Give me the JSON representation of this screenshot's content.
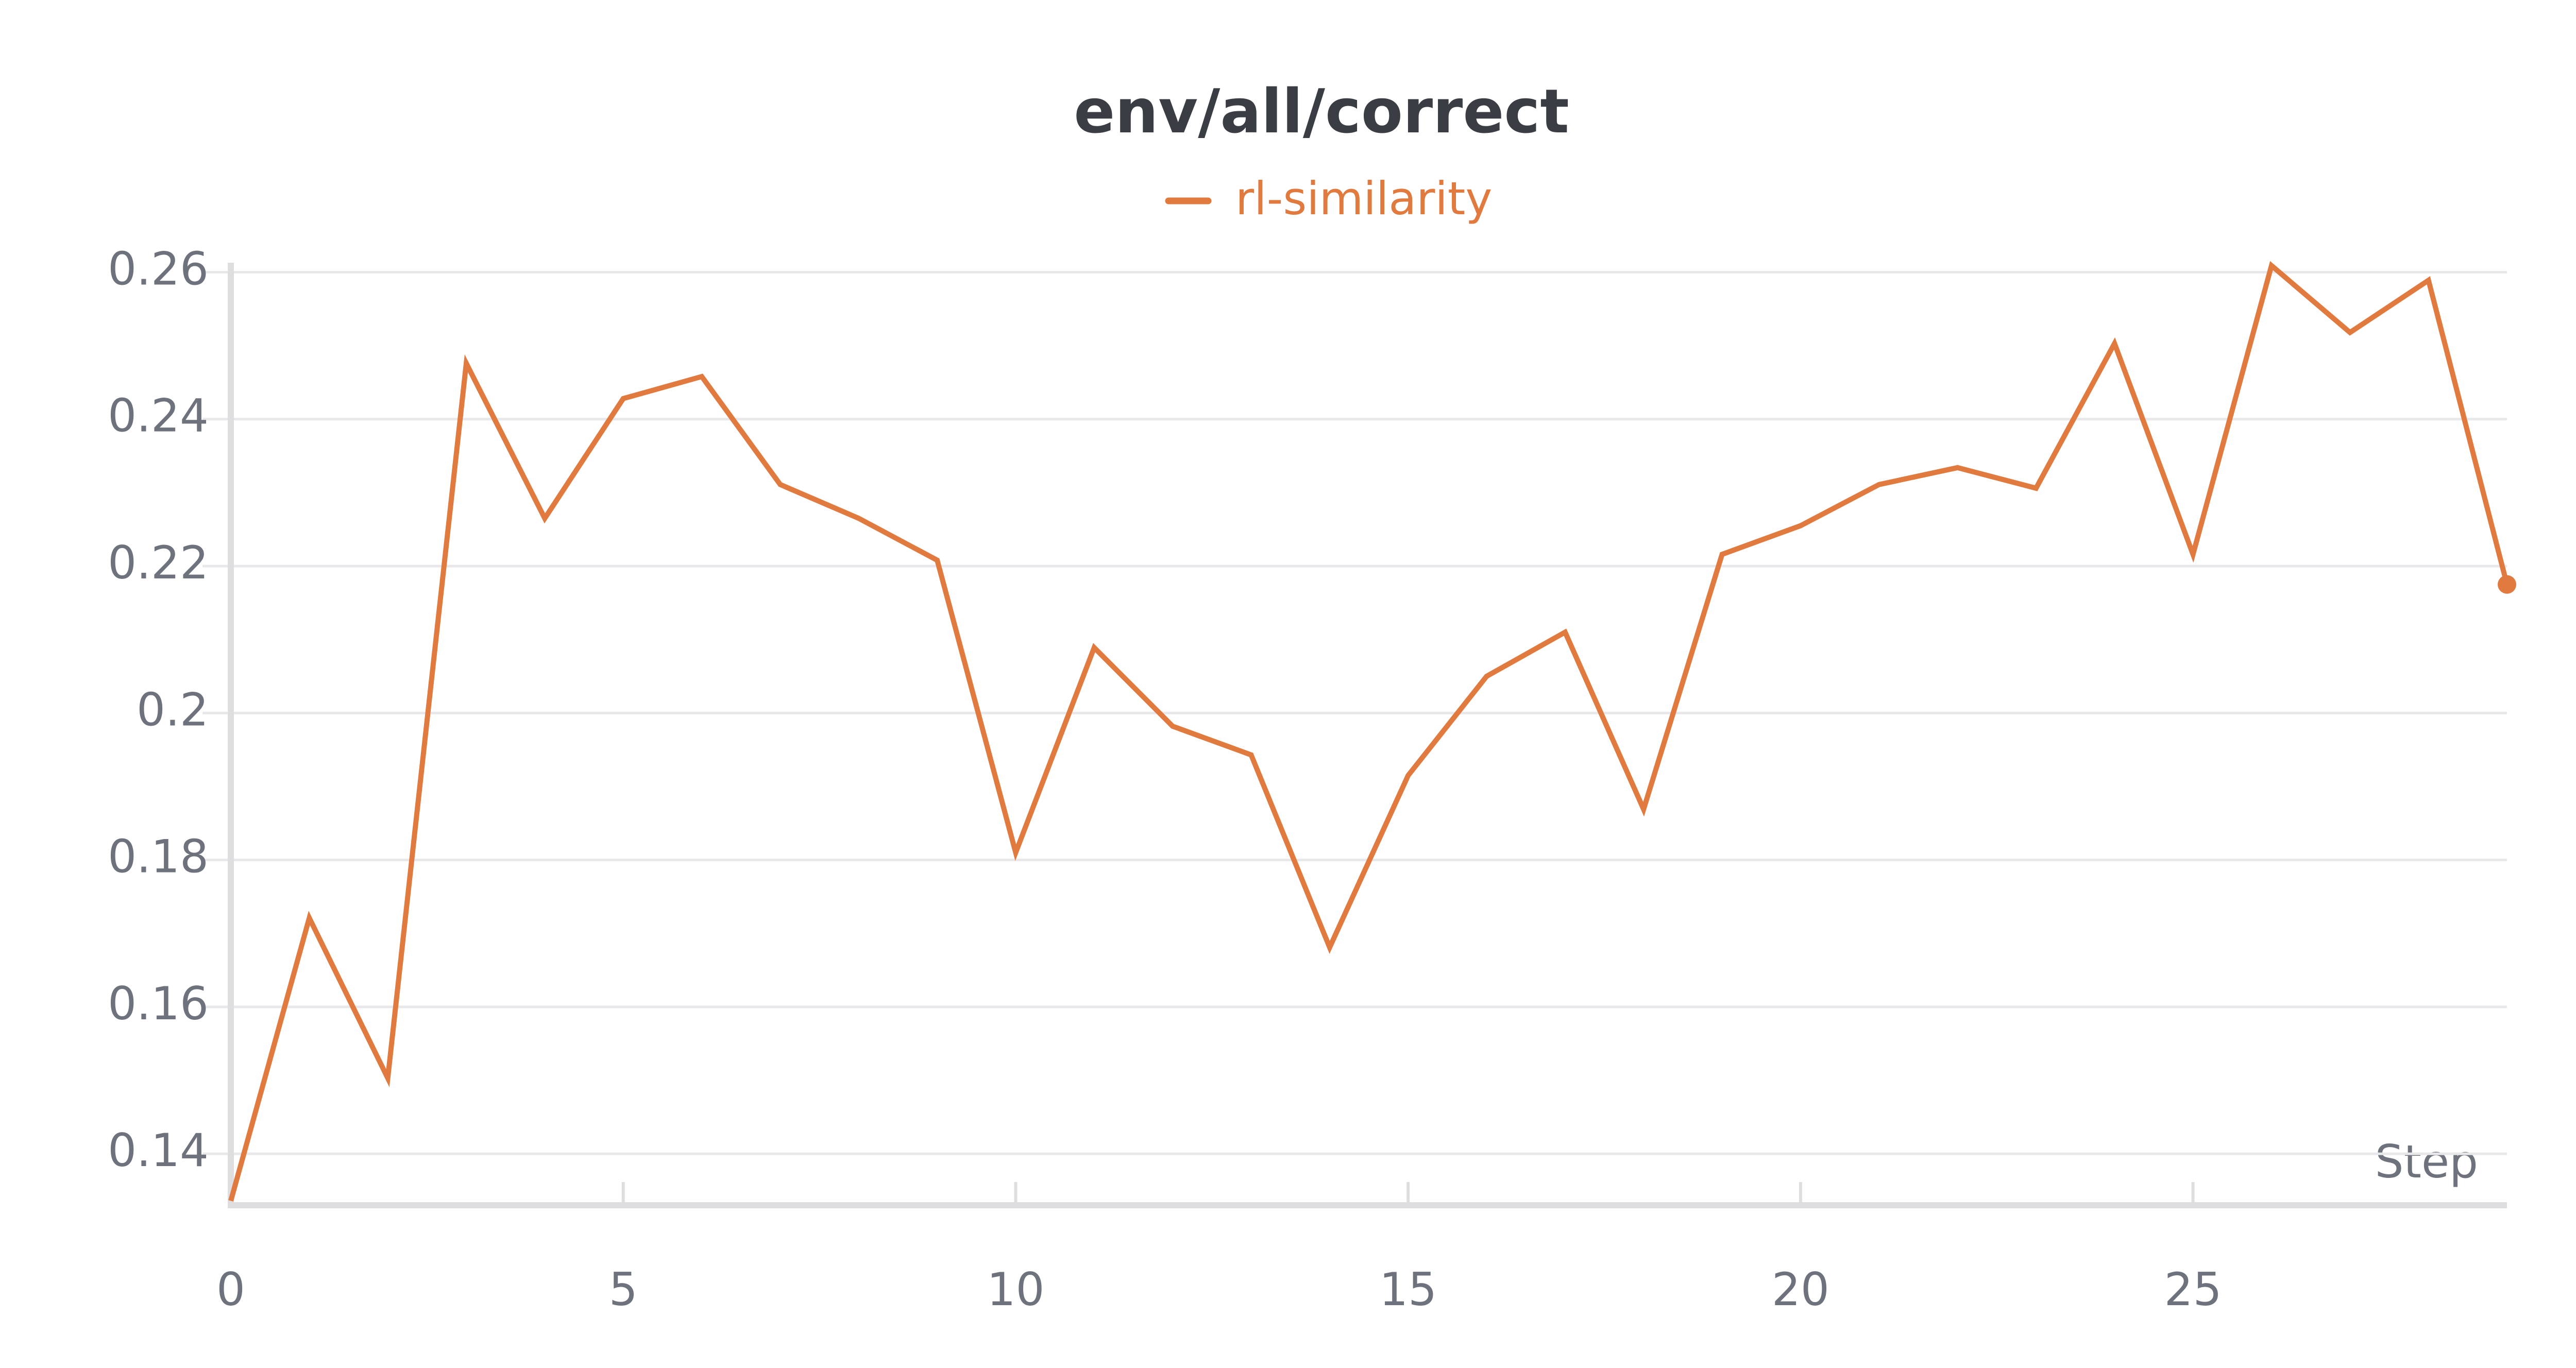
{
  "chart_data": {
    "type": "line",
    "title": "env/all/correct",
    "xlabel": "Step",
    "x": [
      0,
      1,
      2,
      3,
      4,
      5,
      6,
      7,
      8,
      9,
      10,
      11,
      12,
      13,
      14,
      15,
      16,
      17,
      18,
      19,
      20,
      21,
      22,
      23,
      24,
      25,
      26,
      27,
      28,
      29
    ],
    "series": [
      {
        "name": "rl-similarity",
        "color": "#e07a3f",
        "values": [
          0.1336,
          0.1721,
          0.1503,
          0.2476,
          0.2265,
          0.2428,
          0.2458,
          0.2311,
          0.2265,
          0.2208,
          0.181,
          0.2089,
          0.1982,
          0.1943,
          0.1681,
          0.1915,
          0.205,
          0.211,
          0.1869,
          0.2216,
          0.2255,
          0.2311,
          0.2334,
          0.2306,
          0.2503,
          0.2216,
          0.2609,
          0.2518,
          0.2589,
          0.2175
        ]
      }
    ],
    "xlim": [
      0,
      29
    ],
    "xticks": [
      0,
      5,
      10,
      15,
      20,
      25
    ],
    "ylim": [
      0.133,
      0.262
    ],
    "yticks": [
      0.14,
      0.16,
      0.18,
      0.2,
      0.22,
      0.24,
      0.26
    ],
    "grid": true
  }
}
